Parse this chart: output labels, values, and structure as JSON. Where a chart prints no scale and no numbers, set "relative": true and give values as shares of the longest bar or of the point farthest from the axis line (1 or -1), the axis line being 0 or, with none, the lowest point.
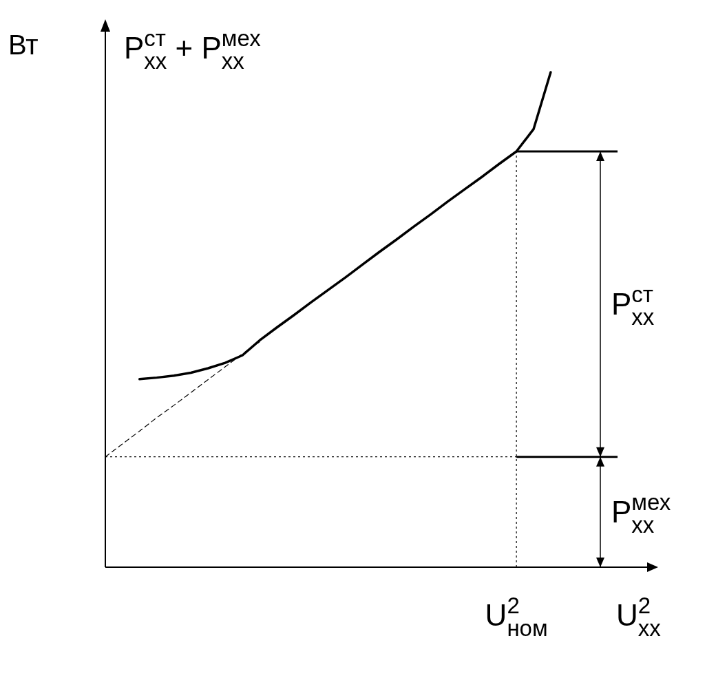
{
  "chart_data": {
    "type": "line",
    "relative": true,
    "title": "P$^{ст}$$_{хх}$ + P$^{мех}$$_{хх}$",
    "ylabel": "Вт",
    "xlabel": "U$^{2}$$_{хх}$",
    "categories": [
      null,
      null,
      null,
      null,
      null,
      null,
      null,
      null,
      null,
      null,
      null,
      null,
      null,
      null,
      null,
      null,
      null,
      null,
      null,
      null,
      null,
      null,
      null,
      null,
      null,
      null,
      null,
      null,
      null,
      null,
      null,
      null
    ],
    "series": [
      {
        "color": "#000000",
        "line_style": "solid",
        "values": [
          null,
          null,
          0.38,
          0.383,
          0.387,
          0.393,
          0.402,
          0.413,
          0.428,
          0.458,
          0.484,
          0.509,
          0.535,
          0.56,
          0.585,
          0.611,
          0.637,
          0.662,
          0.688,
          0.713,
          0.739,
          0.764,
          0.789,
          0.815,
          0.84,
          0.885,
          1,
          null,
          null,
          null,
          null,
          null
        ]
      },
      {
        "color": "#000000",
        "line_style": "dashed",
        "values": [
          0.223,
          0.249,
          0.275,
          0.302,
          0.327,
          0.353,
          0.379,
          0.405,
          0.431,
          0.455,
          null,
          null,
          null,
          null,
          null,
          null,
          null,
          null,
          null,
          null,
          null,
          null,
          null,
          null,
          null,
          null,
          null,
          null,
          null,
          null,
          null,
          null
        ]
      }
    ],
    "ref_lines": [
      {
        "axis": "y",
        "value": 0.223,
        "line_style": "dotted"
      },
      {
        "axis": "y",
        "value": 0.84,
        "line_style": "solid"
      }
    ],
    "annotations": [
      "P$^{ст}$$_{хх}$",
      "P$^{мех}$$_{хх}$",
      {
        "text": "U$^{2}$$_{ном}$",
        "y": 0.84
      }
    ]
  }
}
